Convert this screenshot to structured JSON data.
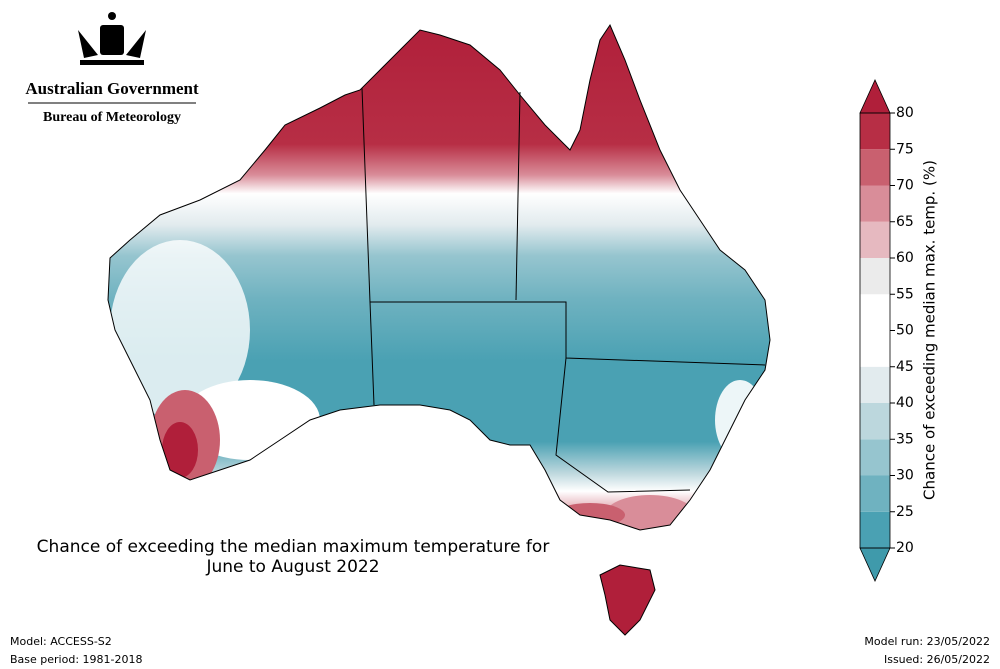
{
  "header": {
    "government": "Australian Government",
    "agency": "Bureau of Meteorology"
  },
  "title_lines": [
    "Chance of exceeding the median maximum temperature for",
    "June to August 2022"
  ],
  "colorbar": {
    "label": "Chance of exceeding median max. temp. (%)",
    "ticks": [
      20,
      25,
      30,
      35,
      40,
      45,
      50,
      55,
      60,
      65,
      70,
      75,
      80
    ],
    "colors": [
      "#4aa1b3",
      "#6fb2c0",
      "#96c5cf",
      "#bcd7dd",
      "#e2ebee",
      "#ffffff",
      "#ffffff",
      "#ebebeb",
      "#e6b9c0",
      "#d98d99",
      "#c9606f",
      "#b72e45"
    ],
    "extend_colors": [
      "#3f9aab",
      "#b01f3a"
    ]
  },
  "footer": {
    "model": "Model: ACCESS-S2",
    "base_period": "Base period: 1981-2018",
    "model_run": "Model run: 23/05/2022",
    "issued": "Issued: 26/05/2022"
  }
}
